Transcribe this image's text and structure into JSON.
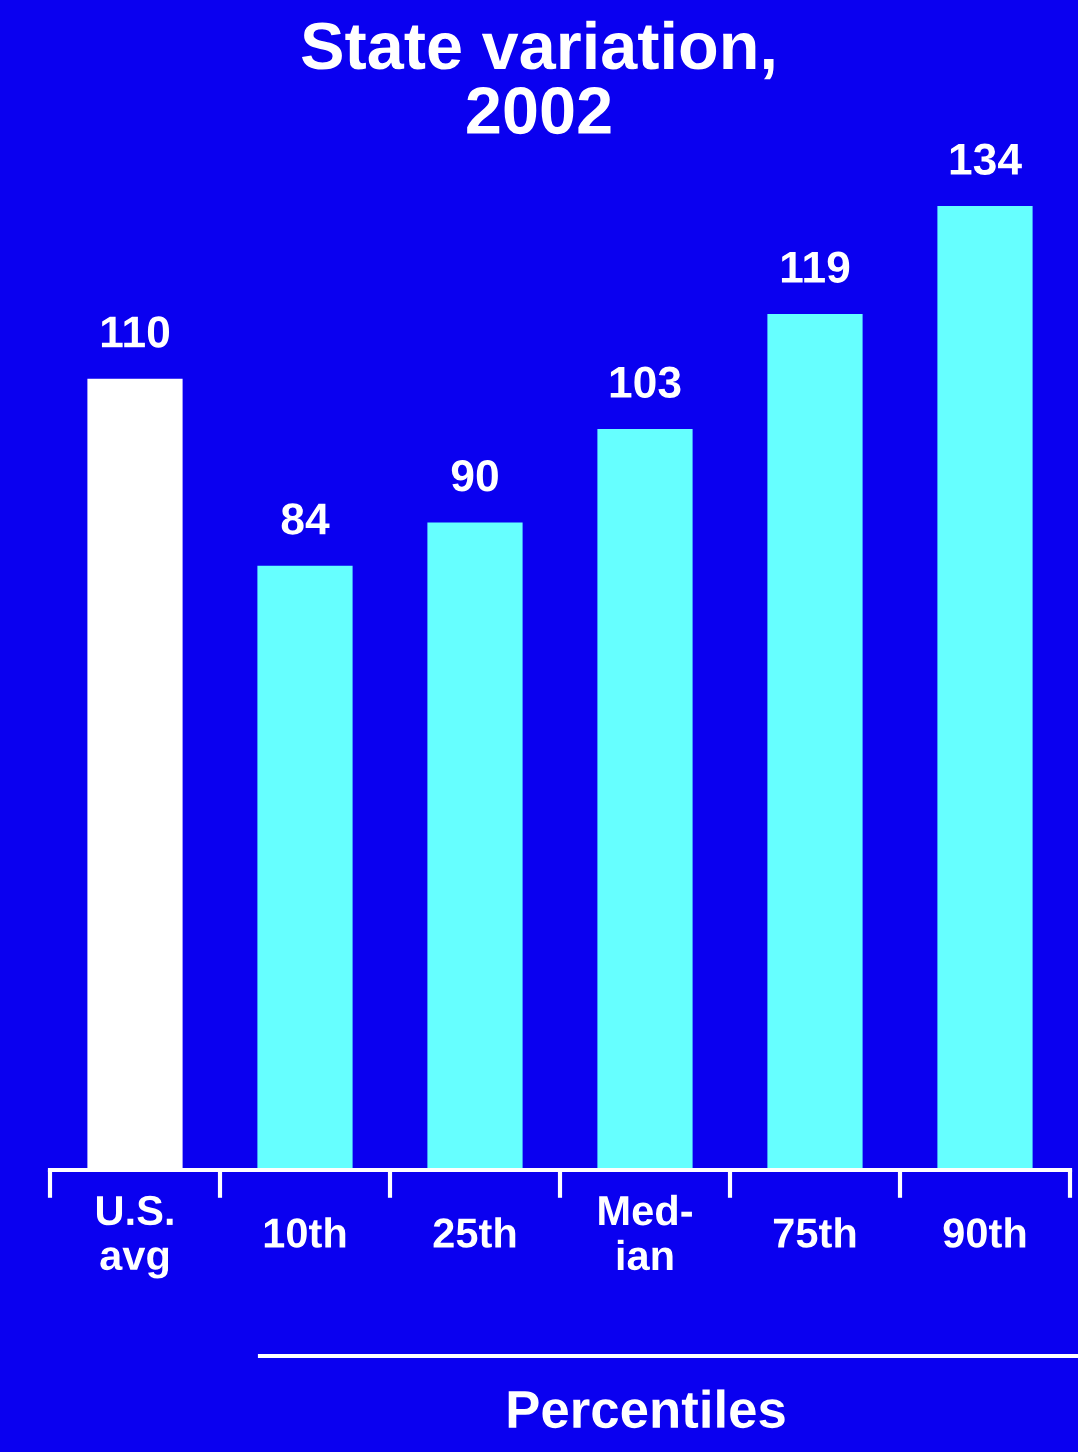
{
  "chart_data": {
    "type": "bar",
    "title": "State variation,\n2002",
    "xlabel": "Percentiles",
    "categories": [
      "U.S.\navg",
      "10th",
      "25th",
      "Med-\nian",
      "75th",
      "90th"
    ],
    "values": [
      110,
      84,
      90,
      103,
      119,
      134
    ],
    "colors": [
      "#ffffff",
      "#66ffff",
      "#66ffff",
      "#66ffff",
      "#66ffff",
      "#66ffff"
    ],
    "ylim": [
      0,
      134
    ],
    "data_labels": true,
    "tick_labels": "x",
    "grid": false,
    "legend": false
  }
}
